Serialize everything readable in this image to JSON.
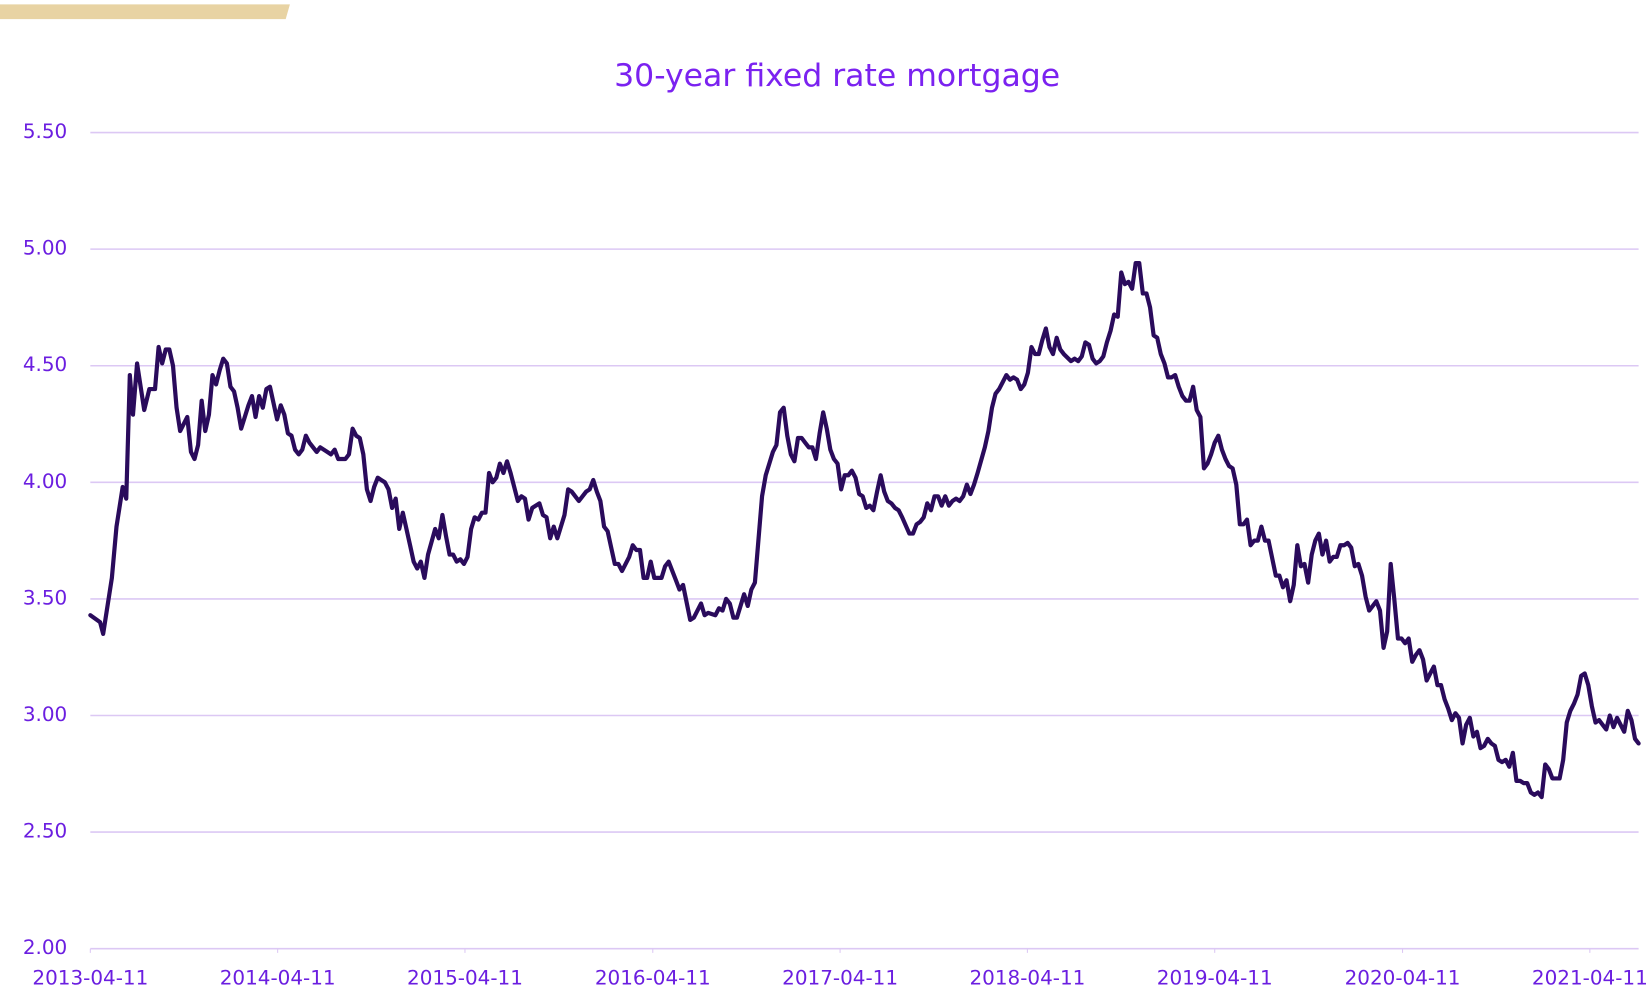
{
  "chart_data": {
    "type": "line",
    "title": "30-year fixed rate mortgage",
    "x": [
      "2013-04-11",
      "2013-04-30",
      "2013-05-06",
      "2013-05-23",
      "2013-06-01",
      "2013-06-13",
      "2013-06-20",
      "2013-06-27",
      "2013-07-03",
      "2013-07-11",
      "2013-07-25",
      "2013-08-04",
      "2013-08-15",
      "2013-08-22",
      "2013-08-29",
      "2013-09-05",
      "2013-09-12",
      "2013-09-19",
      "2013-09-26",
      "2013-10-03",
      "2013-10-17",
      "2013-10-24",
      "2013-10-31",
      "2013-11-07",
      "2013-11-14",
      "2013-11-21",
      "2013-11-28",
      "2013-12-05",
      "2013-12-12",
      "2013-12-19",
      "2013-12-26",
      "2014-01-02",
      "2014-01-09",
      "2014-01-16",
      "2014-01-23",
      "2014-01-30",
      "2014-02-13",
      "2014-02-20",
      "2014-02-27",
      "2014-03-06",
      "2014-03-13",
      "2014-03-20",
      "2014-03-27",
      "2014-04-03",
      "2014-04-10",
      "2014-04-17",
      "2014-04-24",
      "2014-05-01",
      "2014-05-08",
      "2014-05-15",
      "2014-05-22",
      "2014-05-29",
      "2014-06-05",
      "2014-06-12",
      "2014-06-26",
      "2014-07-03",
      "2014-07-17",
      "2014-07-24",
      "2014-07-31",
      "2014-08-07",
      "2014-08-21",
      "2014-08-28",
      "2014-09-04",
      "2014-09-11",
      "2014-09-18",
      "2014-09-25",
      "2014-10-02",
      "2014-10-09",
      "2014-10-16",
      "2014-10-23",
      "2014-11-06",
      "2014-11-13",
      "2014-11-20",
      "2014-11-27",
      "2014-12-04",
      "2014-12-11",
      "2014-12-25",
      "2015-01-01",
      "2015-01-08",
      "2015-01-15",
      "2015-01-22",
      "2015-01-29",
      "2015-02-12",
      "2015-02-19",
      "2015-02-26",
      "2015-03-05",
      "2015-03-12",
      "2015-03-19",
      "2015-03-26",
      "2015-04-02",
      "2015-04-09",
      "2015-04-16",
      "2015-04-23",
      "2015-04-30",
      "2015-05-07",
      "2015-05-14",
      "2015-05-21",
      "2015-05-28",
      "2015-06-04",
      "2015-06-11",
      "2015-06-18",
      "2015-06-25",
      "2015-07-02",
      "2015-07-09",
      "2015-07-23",
      "2015-07-30",
      "2015-08-06",
      "2015-08-13",
      "2015-08-20",
      "2015-09-03",
      "2015-09-10",
      "2015-09-17",
      "2015-09-24",
      "2015-10-01",
      "2015-10-08",
      "2015-10-22",
      "2015-10-29",
      "2015-11-05",
      "2015-11-19",
      "2015-12-03",
      "2015-12-10",
      "2015-12-17",
      "2015-12-24",
      "2015-12-31",
      "2016-01-07",
      "2016-01-14",
      "2016-01-21",
      "2016-01-28",
      "2016-02-04",
      "2016-02-11",
      "2016-02-18",
      "2016-02-25",
      "2016-03-03",
      "2016-03-10",
      "2016-03-17",
      "2016-03-24",
      "2016-03-31",
      "2016-04-07",
      "2016-04-14",
      "2016-04-28",
      "2016-05-05",
      "2016-05-12",
      "2016-05-26",
      "2016-06-02",
      "2016-06-09",
      "2016-06-23",
      "2016-06-30",
      "2016-07-07",
      "2016-07-14",
      "2016-07-21",
      "2016-07-28",
      "2016-08-11",
      "2016-08-18",
      "2016-08-25",
      "2016-09-01",
      "2016-09-08",
      "2016-09-15",
      "2016-09-22",
      "2016-09-29",
      "2016-10-06",
      "2016-10-13",
      "2016-10-20",
      "2016-10-27",
      "2016-11-10",
      "2016-11-17",
      "2016-11-24",
      "2016-12-01",
      "2016-12-08",
      "2016-12-15",
      "2016-12-22",
      "2016-12-29",
      "2017-01-05",
      "2017-01-12",
      "2017-01-19",
      "2017-01-26",
      "2017-02-02",
      "2017-02-09",
      "2017-02-16",
      "2017-02-23",
      "2017-03-02",
      "2017-03-09",
      "2017-03-16",
      "2017-03-23",
      "2017-03-30",
      "2017-04-06",
      "2017-04-13",
      "2017-04-20",
      "2017-04-27",
      "2017-05-04",
      "2017-05-11",
      "2017-05-18",
      "2017-05-25",
      "2017-06-01",
      "2017-06-08",
      "2017-06-15",
      "2017-06-22",
      "2017-06-29",
      "2017-07-06",
      "2017-07-13",
      "2017-07-20",
      "2017-07-27",
      "2017-08-03",
      "2017-08-10",
      "2017-08-24",
      "2017-08-31",
      "2017-09-07",
      "2017-09-14",
      "2017-09-21",
      "2017-09-28",
      "2017-10-05",
      "2017-10-12",
      "2017-10-19",
      "2017-10-26",
      "2017-11-02",
      "2017-11-09",
      "2017-11-16",
      "2017-11-23",
      "2017-11-30",
      "2017-12-07",
      "2017-12-14",
      "2017-12-21",
      "2017-12-28",
      "2018-01-04",
      "2018-01-18",
      "2018-01-25",
      "2018-02-01",
      "2018-02-08",
      "2018-02-15",
      "2018-02-22",
      "2018-03-01",
      "2018-03-08",
      "2018-03-15",
      "2018-03-22",
      "2018-03-29",
      "2018-04-05",
      "2018-04-12",
      "2018-04-19",
      "2018-04-26",
      "2018-05-03",
      "2018-05-10",
      "2018-05-17",
      "2018-05-24",
      "2018-05-31",
      "2018-06-07",
      "2018-06-14",
      "2018-06-21",
      "2018-07-05",
      "2018-07-12",
      "2018-07-19",
      "2018-07-26",
      "2018-08-02",
      "2018-08-09",
      "2018-08-16",
      "2018-08-23",
      "2018-08-30",
      "2018-09-06",
      "2018-09-13",
      "2018-09-20",
      "2018-09-27",
      "2018-10-04",
      "2018-10-11",
      "2018-10-18",
      "2018-10-25",
      "2018-11-01",
      "2018-11-08",
      "2018-11-15",
      "2018-11-22",
      "2018-11-29",
      "2018-12-06",
      "2018-12-13",
      "2018-12-20",
      "2018-12-27",
      "2019-01-03",
      "2019-01-10",
      "2019-01-17",
      "2019-01-24",
      "2019-01-31",
      "2019-02-07",
      "2019-02-14",
      "2019-02-21",
      "2019-02-28",
      "2019-03-07",
      "2019-03-14",
      "2019-03-21",
      "2019-03-28",
      "2019-04-04",
      "2019-04-11",
      "2019-04-18",
      "2019-04-25",
      "2019-05-02",
      "2019-05-09",
      "2019-05-16",
      "2019-05-23",
      "2019-05-30",
      "2019-06-06",
      "2019-06-13",
      "2019-06-20",
      "2019-06-27",
      "2019-07-04",
      "2019-07-11",
      "2019-07-18",
      "2019-07-25",
      "2019-08-08",
      "2019-08-15",
      "2019-08-22",
      "2019-08-29",
      "2019-09-05",
      "2019-09-12",
      "2019-09-19",
      "2019-09-26",
      "2019-10-03",
      "2019-10-10",
      "2019-10-17",
      "2019-10-24",
      "2019-10-31",
      "2019-11-07",
      "2019-11-14",
      "2019-11-21",
      "2019-11-28",
      "2019-12-05",
      "2019-12-12",
      "2019-12-19",
      "2019-12-26",
      "2020-01-02",
      "2020-01-09",
      "2020-01-16",
      "2020-01-23",
      "2020-01-30",
      "2020-02-06",
      "2020-02-13",
      "2020-02-20",
      "2020-02-27",
      "2020-03-05",
      "2020-03-12",
      "2020-03-19",
      "2020-03-26",
      "2020-04-02",
      "2020-04-09",
      "2020-04-16",
      "2020-04-23",
      "2020-04-30",
      "2020-05-07",
      "2020-05-14",
      "2020-05-21",
      "2020-05-28",
      "2020-06-04",
      "2020-06-11",
      "2020-06-18",
      "2020-06-25",
      "2020-07-02",
      "2020-07-09",
      "2020-07-16",
      "2020-07-23",
      "2020-07-30",
      "2020-08-06",
      "2020-08-13",
      "2020-08-20",
      "2020-08-27",
      "2020-09-03",
      "2020-09-10",
      "2020-09-17",
      "2020-09-24",
      "2020-10-01",
      "2020-10-08",
      "2020-10-15",
      "2020-10-22",
      "2020-10-29",
      "2020-11-05",
      "2020-11-12",
      "2020-11-19",
      "2020-11-26",
      "2020-12-03",
      "2020-12-10",
      "2020-12-17",
      "2020-12-24",
      "2020-12-31",
      "2021-01-07",
      "2021-01-14",
      "2021-01-21",
      "2021-01-28",
      "2021-02-04",
      "2021-02-11",
      "2021-02-18",
      "2021-02-25",
      "2021-03-04",
      "2021-03-11",
      "2021-03-18",
      "2021-03-25",
      "2021-04-01",
      "2021-04-08",
      "2021-04-15",
      "2021-04-22",
      "2021-04-29",
      "2021-05-06",
      "2021-05-13",
      "2021-05-20",
      "2021-05-27",
      "2021-06-03",
      "2021-06-10",
      "2021-06-17",
      "2021-06-24",
      "2021-07-01",
      "2021-07-08",
      "2021-07-15"
    ],
    "values": [
      3.43,
      3.4,
      3.35,
      3.59,
      3.81,
      3.98,
      3.93,
      4.46,
      4.29,
      4.51,
      4.31,
      4.4,
      4.4,
      4.58,
      4.51,
      4.57,
      4.57,
      4.5,
      4.32,
      4.22,
      4.28,
      4.13,
      4.1,
      4.16,
      4.35,
      4.22,
      4.29,
      4.46,
      4.42,
      4.48,
      4.53,
      4.51,
      4.41,
      4.39,
      4.32,
      4.23,
      4.33,
      4.37,
      4.28,
      4.37,
      4.32,
      4.4,
      4.41,
      4.34,
      4.27,
      4.33,
      4.29,
      4.21,
      4.2,
      4.14,
      4.12,
      4.14,
      4.2,
      4.17,
      4.13,
      4.15,
      4.13,
      4.12,
      4.14,
      4.1,
      4.1,
      4.12,
      4.23,
      4.2,
      4.19,
      4.12,
      3.97,
      3.92,
      3.98,
      4.02,
      4.0,
      3.97,
      3.89,
      3.93,
      3.8,
      3.87,
      3.73,
      3.66,
      3.63,
      3.66,
      3.59,
      3.69,
      3.8,
      3.76,
      3.86,
      3.77,
      3.69,
      3.69,
      3.66,
      3.67,
      3.65,
      3.68,
      3.8,
      3.85,
      3.84,
      3.87,
      3.87,
      4.04,
      4.0,
      4.02,
      4.08,
      4.04,
      4.09,
      4.04,
      3.92,
      3.94,
      3.93,
      3.84,
      3.89,
      3.91,
      3.86,
      3.85,
      3.76,
      3.81,
      3.76,
      3.86,
      3.97,
      3.96,
      3.92,
      3.96,
      3.97,
      4.01,
      3.96,
      3.92,
      3.81,
      3.79,
      3.72,
      3.65,
      3.65,
      3.62,
      3.65,
      3.68,
      3.73,
      3.71,
      3.71,
      3.59,
      3.59,
      3.66,
      3.59,
      3.59,
      3.64,
      3.66,
      3.58,
      3.54,
      3.56,
      3.41,
      3.42,
      3.45,
      3.48,
      3.43,
      3.44,
      3.43,
      3.46,
      3.45,
      3.5,
      3.48,
      3.42,
      3.42,
      3.47,
      3.52,
      3.47,
      3.54,
      3.57,
      3.94,
      4.03,
      4.08,
      4.13,
      4.16,
      4.3,
      4.32,
      4.2,
      4.12,
      4.09,
      4.19,
      4.19,
      4.17,
      4.15,
      4.15,
      4.1,
      4.21,
      4.3,
      4.23,
      4.14,
      4.1,
      4.08,
      3.97,
      4.03,
      4.03,
      4.05,
      4.02,
      3.95,
      3.94,
      3.89,
      3.9,
      3.88,
      3.96,
      4.03,
      3.96,
      3.92,
      3.91,
      3.89,
      3.88,
      3.85,
      3.78,
      3.78,
      3.82,
      3.83,
      3.85,
      3.91,
      3.88,
      3.94,
      3.94,
      3.9,
      3.94,
      3.9,
      3.92,
      3.93,
      3.92,
      3.94,
      3.99,
      3.95,
      3.99,
      4.04,
      4.15,
      4.22,
      4.32,
      4.38,
      4.4,
      4.43,
      4.46,
      4.44,
      4.45,
      4.44,
      4.4,
      4.42,
      4.47,
      4.58,
      4.55,
      4.55,
      4.61,
      4.66,
      4.58,
      4.55,
      4.62,
      4.57,
      4.55,
      4.52,
      4.53,
      4.52,
      4.54,
      4.6,
      4.59,
      4.53,
      4.51,
      4.52,
      4.54,
      4.6,
      4.65,
      4.72,
      4.71,
      4.9,
      4.85,
      4.86,
      4.83,
      4.94,
      4.94,
      4.81,
      4.81,
      4.75,
      4.63,
      4.62,
      4.55,
      4.51,
      4.45,
      4.45,
      4.46,
      4.41,
      4.37,
      4.35,
      4.35,
      4.41,
      4.31,
      4.28,
      4.06,
      4.08,
      4.12,
      4.17,
      4.2,
      4.14,
      4.1,
      4.07,
      4.06,
      3.99,
      3.82,
      3.82,
      3.84,
      3.73,
      3.75,
      3.75,
      3.81,
      3.75,
      3.75,
      3.6,
      3.6,
      3.55,
      3.58,
      3.49,
      3.56,
      3.73,
      3.64,
      3.65,
      3.57,
      3.69,
      3.75,
      3.78,
      3.69,
      3.75,
      3.66,
      3.68,
      3.68,
      3.73,
      3.73,
      3.74,
      3.72,
      3.64,
      3.65,
      3.6,
      3.51,
      3.45,
      3.47,
      3.49,
      3.45,
      3.29,
      3.36,
      3.65,
      3.5,
      3.33,
      3.33,
      3.31,
      3.33,
      3.23,
      3.26,
      3.28,
      3.24,
      3.15,
      3.18,
      3.21,
      3.13,
      3.13,
      3.07,
      3.03,
      2.98,
      3.01,
      2.99,
      2.88,
      2.96,
      2.99,
      2.91,
      2.93,
      2.86,
      2.87,
      2.9,
      2.88,
      2.87,
      2.81,
      2.8,
      2.81,
      2.78,
      2.84,
      2.72,
      2.72,
      2.71,
      2.71,
      2.67,
      2.66,
      2.67,
      2.65,
      2.79,
      2.77,
      2.73,
      2.73,
      2.73,
      2.81,
      2.97,
      3.02,
      3.05,
      3.09,
      3.17,
      3.18,
      3.13,
      3.04,
      2.97,
      2.98,
      2.96,
      2.94,
      3.0,
      2.95,
      2.99,
      2.96,
      2.93,
      3.02,
      2.98,
      2.9,
      2.88
    ],
    "color": "#2a0b5c",
    "xlim": [
      "2013-04-11",
      "2021-07-15"
    ],
    "xticks": [
      "2013-04-11",
      "2014-04-11",
      "2015-04-11",
      "2016-04-11",
      "2017-04-11",
      "2018-04-11",
      "2019-04-11",
      "2020-04-11",
      "2021-04-11"
    ],
    "ylim": [
      2,
      5.5
    ],
    "yticks": [
      {
        "value": 2,
        "label": "2.00"
      },
      {
        "value": 2.5,
        "label": "2.50"
      },
      {
        "value": 3,
        "label": "3.00"
      },
      {
        "value": 3.5,
        "label": "3.50"
      },
      {
        "value": 4,
        "label": "4.00"
      },
      {
        "value": 4.5,
        "label": "4.50"
      },
      {
        "value": 5,
        "label": "5.00"
      },
      {
        "value": 5.5,
        "label": "5.50"
      }
    ],
    "grid": true
  }
}
